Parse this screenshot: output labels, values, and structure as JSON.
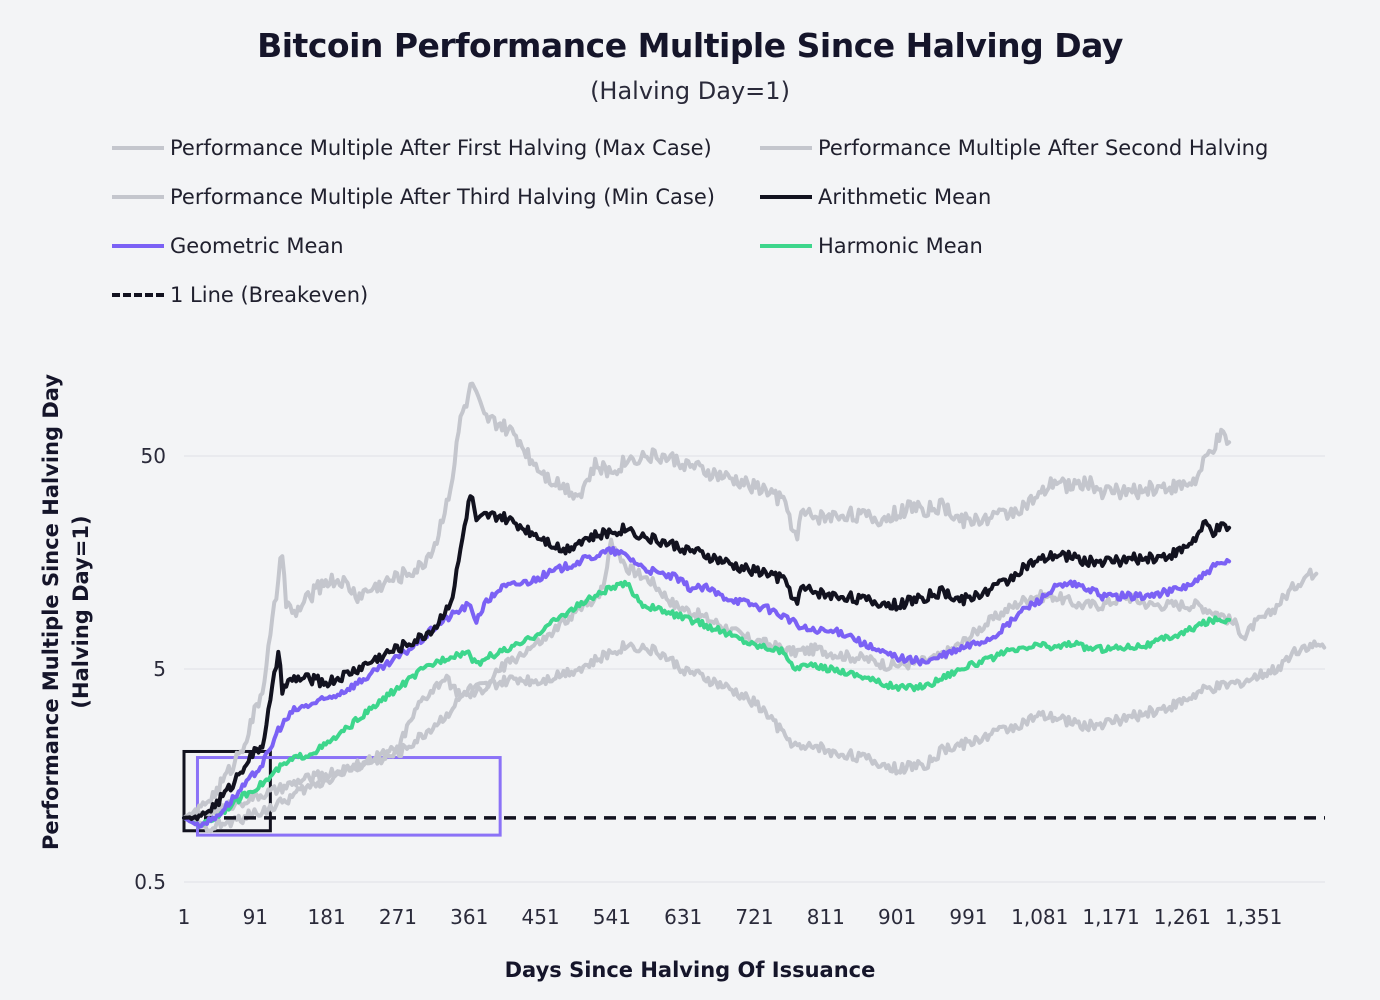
{
  "chart_data": {
    "type": "line",
    "title": "Bitcoin Performance Multiple Since Halving Day",
    "subtitle": "(Halving Day=1)",
    "xlabel": "Days Since Halving Of Issuance",
    "ylabel_line1": "Performance Multiple Since Halving Day",
    "ylabel_line2": "(Halving Day=1)",
    "y_scale": "log",
    "ylim": [
      0.5,
      120
    ],
    "xlim": [
      1,
      1441
    ],
    "x_ticks": [
      {
        "value": 1,
        "label": "1"
      },
      {
        "value": 91,
        "label": "91"
      },
      {
        "value": 181,
        "label": "181"
      },
      {
        "value": 271,
        "label": "271"
      },
      {
        "value": 361,
        "label": "361"
      },
      {
        "value": 451,
        "label": "451"
      },
      {
        "value": 541,
        "label": "541"
      },
      {
        "value": 631,
        "label": "631"
      },
      {
        "value": 721,
        "label": "721"
      },
      {
        "value": 811,
        "label": "811"
      },
      {
        "value": 901,
        "label": "901"
      },
      {
        "value": 991,
        "label": "991"
      },
      {
        "value": 1081,
        "label": "1,081"
      },
      {
        "value": 1171,
        "label": "1,171"
      },
      {
        "value": 1261,
        "label": "1,261"
      },
      {
        "value": 1351,
        "label": "1,351"
      }
    ],
    "y_ticks": [
      {
        "value": 0.5,
        "label": "0.5"
      },
      {
        "value": 5,
        "label": "5"
      },
      {
        "value": 50,
        "label": "50"
      }
    ],
    "grid": "horizontal",
    "legend_position": "top",
    "series": [
      {
        "key": "first",
        "name": "Performance Multiple After First Halving (Max Case)",
        "color": "#c4c6cd",
        "x": [
          1,
          20,
          40,
          60,
          80,
          100,
          110,
          120,
          125,
          130,
          140,
          160,
          180,
          200,
          220,
          240,
          260,
          280,
          300,
          320,
          340,
          350,
          360,
          365,
          370,
          380,
          400,
          420,
          440,
          460,
          480,
          500,
          520,
          540,
          560,
          580,
          600,
          620,
          640,
          660,
          680,
          700,
          720,
          740,
          760,
          775,
          780,
          800,
          820,
          840,
          860,
          880,
          900,
          920,
          940,
          960,
          980,
          1000,
          1020,
          1040,
          1060,
          1080,
          1100,
          1120,
          1140,
          1160,
          1180,
          1200,
          1220,
          1240,
          1260,
          1280,
          1290,
          1300,
          1310,
          1320
        ],
        "y": [
          1,
          1.1,
          1.3,
          1.7,
          2.4,
          4,
          7,
          13,
          18,
          10,
          9,
          11,
          13,
          13,
          11,
          12,
          13,
          14,
          15,
          20,
          40,
          75,
          95,
          110,
          95,
          75,
          70,
          62,
          48,
          40,
          36,
          33,
          45,
          42,
          48,
          50,
          50,
          48,
          45,
          42,
          40,
          38,
          36,
          34,
          30,
          20,
          27,
          26,
          26,
          27,
          26,
          25,
          27,
          29,
          28,
          29,
          25,
          25,
          26,
          27,
          29,
          32,
          38,
          36,
          38,
          34,
          34,
          34,
          35,
          36,
          36,
          39,
          48,
          55,
          62,
          58
        ]
      },
      {
        "key": "second",
        "name": "Performance Multiple After Second Halving",
        "color": "#c4c6cd",
        "x": [
          1,
          30,
          60,
          90,
          120,
          150,
          180,
          210,
          240,
          270,
          300,
          330,
          350,
          360,
          380,
          400,
          430,
          460,
          490,
          510,
          530,
          540,
          560,
          590,
          620,
          650,
          680,
          710,
          740,
          770,
          800,
          830,
          860,
          890,
          920,
          950,
          980,
          1010,
          1040,
          1070,
          1100,
          1130,
          1160,
          1190,
          1220,
          1250,
          1280,
          1310,
          1330,
          1340,
          1350,
          1370,
          1400,
          1420,
          1430
        ],
        "y": [
          1,
          0.9,
          0.95,
          1.05,
          1.15,
          1.35,
          1.5,
          1.7,
          1.9,
          2.1,
          3.5,
          4.5,
          3.8,
          3.7,
          4,
          5,
          6,
          7,
          9,
          10,
          12,
          20,
          15,
          13,
          10,
          9,
          8,
          7,
          6.5,
          6,
          6.2,
          5.8,
          5.6,
          5.2,
          5.3,
          5.6,
          6.5,
          8,
          9.5,
          11,
          11,
          10,
          10,
          11,
          10,
          10,
          10,
          9,
          8,
          7,
          8,
          9,
          12,
          14,
          14
        ]
      },
      {
        "key": "third",
        "name": "Performance Multiple After Third Halving (Min Case)",
        "color": "#c4c6cd",
        "x": [
          1,
          30,
          60,
          90,
          120,
          150,
          180,
          210,
          240,
          270,
          300,
          330,
          360,
          390,
          420,
          450,
          480,
          510,
          540,
          560,
          580,
          600,
          630,
          660,
          690,
          720,
          740,
          760,
          780,
          800,
          820,
          840,
          860,
          880,
          900,
          920,
          940,
          960,
          980,
          1000,
          1020,
          1050,
          1080,
          1110,
          1140,
          1170,
          1200,
          1230,
          1260,
          1290,
          1320,
          1350,
          1380,
          1400,
          1420,
          1440
        ],
        "y": [
          1,
          1.05,
          1.15,
          1.25,
          1.35,
          1.5,
          1.6,
          1.7,
          1.85,
          2,
          2.4,
          3,
          4,
          4.2,
          4.5,
          4.4,
          4.8,
          5.2,
          6,
          6.5,
          6.3,
          6,
          5,
          4.5,
          4,
          3.5,
          3,
          2.4,
          2.1,
          2.2,
          2,
          2,
          1.9,
          1.8,
          1.7,
          1.75,
          1.8,
          2.1,
          2.2,
          2.3,
          2.5,
          2.7,
          3,
          2.9,
          2.7,
          2.8,
          3,
          3.2,
          3.5,
          4,
          4.2,
          4.5,
          5,
          6,
          6.5,
          6.3
        ]
      },
      {
        "key": "arith",
        "name": "Arithmetic Mean",
        "color": "#12121f",
        "x": [
          1,
          20,
          40,
          60,
          80,
          100,
          110,
          120,
          125,
          130,
          140,
          160,
          180,
          200,
          220,
          240,
          260,
          280,
          300,
          320,
          340,
          350,
          360,
          365,
          370,
          380,
          400,
          420,
          440,
          460,
          480,
          500,
          520,
          540,
          560,
          580,
          600,
          620,
          640,
          660,
          680,
          700,
          720,
          740,
          760,
          775,
          780,
          800,
          820,
          840,
          860,
          880,
          900,
          920,
          940,
          960,
          980,
          1000,
          1020,
          1040,
          1060,
          1080,
          1100,
          1120,
          1140,
          1160,
          1180,
          1200,
          1220,
          1240,
          1260,
          1280,
          1290,
          1300,
          1310,
          1320
        ],
        "y": [
          1,
          1,
          1.15,
          1.4,
          1.85,
          2.2,
          3.5,
          6,
          4,
          4.2,
          4.5,
          4.5,
          4.3,
          4.6,
          5,
          5.5,
          6,
          6.5,
          7,
          8,
          11,
          18,
          30,
          32,
          24,
          26,
          26,
          24,
          22,
          20,
          18,
          20,
          21,
          22,
          23,
          21,
          20,
          19,
          18,
          17,
          16,
          15,
          14.5,
          14,
          13,
          10,
          12,
          11.5,
          11,
          11,
          10.5,
          10.2,
          10,
          10.5,
          11,
          11.5,
          10.5,
          11,
          12,
          13,
          15,
          16,
          17,
          17,
          16,
          16,
          16,
          16.5,
          16.5,
          17,
          18,
          21,
          24,
          22,
          23,
          23
        ]
      },
      {
        "key": "geo",
        "name": "Geometric Mean",
        "color": "#7b61f5",
        "x": [
          1,
          20,
          40,
          60,
          80,
          100,
          110,
          120,
          140,
          160,
          180,
          200,
          220,
          240,
          260,
          280,
          300,
          320,
          340,
          360,
          370,
          380,
          400,
          420,
          440,
          460,
          480,
          500,
          520,
          540,
          560,
          580,
          600,
          620,
          640,
          660,
          680,
          700,
          720,
          740,
          760,
          780,
          800,
          820,
          840,
          860,
          880,
          900,
          920,
          940,
          960,
          980,
          1000,
          1020,
          1040,
          1060,
          1080,
          1100,
          1120,
          1140,
          1160,
          1180,
          1200,
          1220,
          1240,
          1260,
          1280,
          1300,
          1320
        ],
        "y": [
          1,
          0.92,
          1,
          1.2,
          1.45,
          1.8,
          2.1,
          2.6,
          3.2,
          3.4,
          3.6,
          3.9,
          4.3,
          4.8,
          5.3,
          6,
          6.8,
          8,
          9,
          10,
          8.5,
          10,
          12,
          12.5,
          13,
          14,
          15,
          16,
          17,
          18,
          17,
          15,
          14,
          13.5,
          12,
          12,
          11,
          10.5,
          10,
          9.5,
          8.8,
          7.8,
          7.5,
          7.5,
          7.3,
          6.5,
          6,
          5.7,
          5.5,
          5.4,
          5.8,
          6.2,
          6.6,
          7,
          8,
          9.5,
          10.5,
          12,
          12.5,
          12,
          11,
          11,
          11,
          11,
          11.5,
          12,
          13,
          15,
          16
        ]
      },
      {
        "key": "harm",
        "name": "Harmonic Mean",
        "color": "#3dd68c",
        "x": [
          1,
          20,
          40,
          60,
          80,
          100,
          110,
          120,
          140,
          160,
          180,
          200,
          220,
          240,
          260,
          280,
          300,
          320,
          340,
          360,
          370,
          380,
          400,
          420,
          440,
          460,
          480,
          500,
          520,
          540,
          560,
          580,
          600,
          620,
          640,
          660,
          680,
          700,
          720,
          740,
          760,
          770,
          780,
          800,
          820,
          840,
          860,
          880,
          900,
          920,
          940,
          960,
          980,
          1000,
          1020,
          1040,
          1060,
          1080,
          1100,
          1120,
          1140,
          1160,
          1180,
          1200,
          1220,
          1240,
          1260,
          1280,
          1300,
          1320
        ],
        "y": [
          1,
          0.92,
          1,
          1.15,
          1.3,
          1.45,
          1.55,
          1.7,
          1.9,
          2,
          2.2,
          2.5,
          2.9,
          3.3,
          3.8,
          4.3,
          4.9,
          5.4,
          5.8,
          6,
          5.2,
          5.6,
          6,
          6.4,
          7,
          8,
          9,
          10,
          11,
          12,
          12.5,
          10,
          9.5,
          9,
          8.5,
          8,
          7.5,
          7,
          6.5,
          6.3,
          6,
          5,
          5.2,
          5.1,
          5,
          4.8,
          4.6,
          4.3,
          4.1,
          4.1,
          4.2,
          4.6,
          5,
          5.3,
          5.6,
          6,
          6.2,
          6.5,
          6.3,
          6.6,
          6.3,
          6.2,
          6.3,
          6.4,
          6.5,
          7,
          7.3,
          8,
          8.5,
          8.5
        ]
      },
      {
        "key": "breakeven",
        "name": "1 Line (Breakeven)",
        "color": "#12121f",
        "dashed": true,
        "x": [
          1,
          1441
        ],
        "y": [
          1,
          1
        ]
      }
    ],
    "annotations": [
      {
        "type": "box",
        "color": "#12121f",
        "x": [
          1,
          110
        ],
        "y": [
          0.87,
          2.05
        ]
      },
      {
        "type": "box",
        "color": "#8b72f7",
        "x": [
          18,
          400
        ],
        "y": [
          0.83,
          1.92
        ]
      }
    ]
  }
}
